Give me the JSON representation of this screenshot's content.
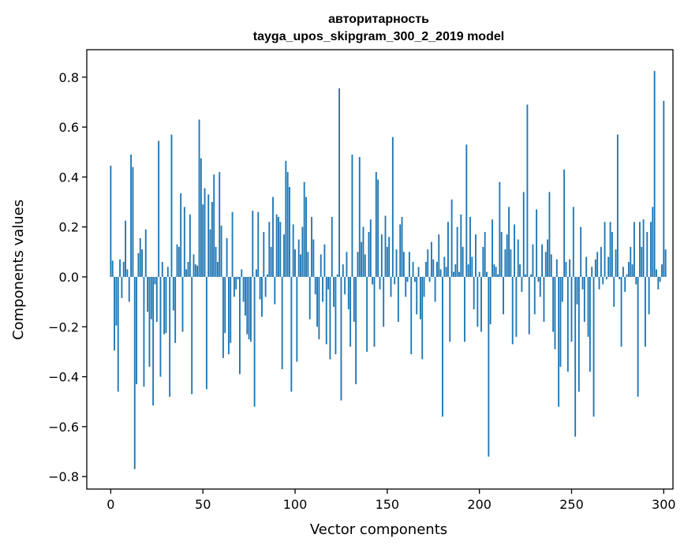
{
  "chart_data": {
    "type": "bar",
    "title": "авторитарность",
    "subtitle": "tayga_upos_skipgram_300_2_2019 model",
    "xlabel": "Vector components",
    "ylabel": "Components values",
    "xlim": [
      -13,
      305
    ],
    "ylim": [
      -0.85,
      0.91
    ],
    "xticks": [
      0,
      50,
      100,
      150,
      200,
      250,
      300
    ],
    "xtick_labels": [
      "0",
      "50",
      "100",
      "150",
      "200",
      "250",
      "300"
    ],
    "yticks": [
      -0.8,
      -0.6,
      -0.4,
      -0.2,
      0.0,
      0.2,
      0.4,
      0.6,
      0.8
    ],
    "ytick_labels": [
      "−0.8",
      "−0.6",
      "−0.4",
      "−0.2",
      "0.0",
      "0.2",
      "0.4",
      "0.6",
      "0.8"
    ],
    "bar_color": "#1f77b4",
    "grid": false,
    "values": [
      0.445,
      0.065,
      -0.295,
      -0.195,
      -0.46,
      0.07,
      -0.085,
      0.06,
      0.225,
      0.03,
      -0.1,
      0.49,
      0.44,
      -0.77,
      -0.43,
      0.095,
      0.155,
      0.11,
      -0.44,
      0.19,
      -0.14,
      -0.36,
      -0.17,
      -0.515,
      -0.03,
      -0.18,
      0.545,
      -0.4,
      0.06,
      -0.23,
      -0.225,
      0.04,
      -0.48,
      0.57,
      -0.135,
      -0.265,
      0.13,
      0.12,
      0.335,
      -0.22,
      0.28,
      0.03,
      0.06,
      0.25,
      -0.47,
      0.09,
      0.05,
      0.045,
      0.63,
      0.475,
      0.29,
      0.355,
      -0.45,
      0.33,
      0.19,
      0.3,
      0.41,
      0.12,
      0.06,
      0.42,
      0.205,
      -0.325,
      -0.225,
      0.155,
      -0.31,
      -0.265,
      0.26,
      -0.08,
      -0.05,
      -0.01,
      -0.39,
      0.03,
      -0.1,
      -0.155,
      -0.23,
      -0.25,
      -0.26,
      0.265,
      -0.52,
      0.03,
      0.26,
      -0.09,
      -0.16,
      0.18,
      -0.08,
      0.01,
      0.22,
      0.12,
      0.32,
      -0.11,
      0.25,
      0.24,
      0.22,
      -0.37,
      0.17,
      0.465,
      0.42,
      0.36,
      -0.46,
      0.21,
      0.11,
      -0.34,
      0.15,
      0.09,
      0.2,
      0.38,
      0.32,
      0.1,
      -0.17,
      0.24,
      0.15,
      -0.07,
      -0.2,
      -0.25,
      0.09,
      -0.1,
      0.13,
      -0.27,
      -0.05,
      -0.33,
      0.24,
      -0.12,
      -0.31,
      0.01,
      0.755,
      -0.495,
      0.05,
      -0.07,
      0.1,
      -0.13,
      -0.28,
      0.49,
      -0.18,
      -0.43,
      0.1,
      0.48,
      0.14,
      0.2,
      0.09,
      -0.3,
      0.18,
      0.23,
      -0.03,
      -0.28,
      0.42,
      0.39,
      -0.05,
      0.17,
      -0.2,
      0.245,
      0.12,
      0.16,
      -0.08,
      0.56,
      -0.03,
      0.11,
      -0.18,
      0.21,
      0.24,
      0.1,
      -0.08,
      -0.02,
      0.1,
      -0.31,
      0.06,
      -0.02,
      -0.15,
      0.04,
      -0.17,
      -0.33,
      -0.08,
      0.06,
      0.11,
      -0.02,
      0.14,
      0.07,
      -0.1,
      0.06,
      0.17,
      0.03,
      -0.56,
      0.08,
      0.04,
      0.22,
      -0.26,
      0.31,
      0.02,
      0.05,
      0.2,
      0.02,
      0.25,
      0.12,
      -0.26,
      0.53,
      0.05,
      0.24,
      0.08,
      -0.13,
      0.17,
      -0.2,
      0.02,
      -0.22,
      0.12,
      0.18,
      0.02,
      -0.72,
      -0.19,
      0.23,
      0.05,
      0.04,
      0.01,
      0.38,
      0.18,
      -0.15,
      0.11,
      0.17,
      0.28,
      0.11,
      -0.27,
      0.21,
      -0.24,
      0.15,
      0.05,
      -0.06,
      0.34,
      0.01,
      0.69,
      -0.23,
      0.01,
      0.13,
      -0.15,
      0.27,
      -0.02,
      -0.08,
      0.13,
      -0.18,
      0.1,
      0.15,
      0.34,
      0.09,
      -0.22,
      -0.29,
      0.07,
      -0.52,
      -0.36,
      -0.1,
      0.43,
      0.06,
      -0.38,
      0.07,
      -0.26,
      0.28,
      -0.64,
      -0.11,
      -0.46,
      0.2,
      -0.05,
      -0.18,
      0.08,
      -0.24,
      -0.38,
      0.04,
      -0.56,
      0.07,
      0.1,
      -0.05,
      0.12,
      -0.03,
      0.22,
      -0.01,
      0.08,
      0.22,
      0.18,
      -0.12,
      0.11,
      0.57,
      -0.01,
      -0.28,
      0.04,
      -0.06,
      0.01,
      0.06,
      0.12,
      0.05,
      0.22,
      -0.03,
      -0.48,
      0.22,
      0.12,
      0.23,
      -0.28,
      0.18,
      -0.15,
      0.22,
      0.28,
      0.825,
      0.03,
      -0.05,
      -0.02,
      0.05,
      0.705,
      0.11
    ]
  }
}
